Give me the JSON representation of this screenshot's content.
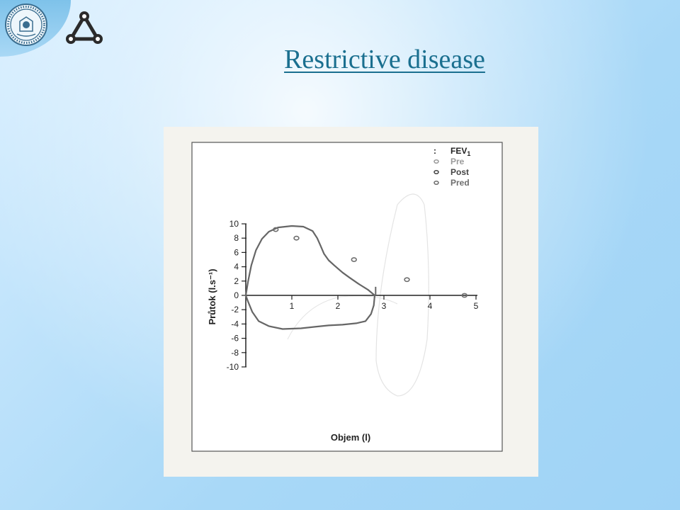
{
  "slide": {
    "title": "Restrictive disease",
    "colors": {
      "title": "#1a6f8f",
      "background": "#a8d8f7"
    }
  },
  "icons": {
    "seal": "university-seal-icon",
    "logo": "triangle-nodes-logo-icon"
  },
  "chart_data": {
    "type": "line",
    "title": "",
    "xlabel": "Objem (l)",
    "ylabel": "Průtok (l.s⁻¹)",
    "xlim": [
      0,
      5
    ],
    "ylim": [
      -10,
      10
    ],
    "x_ticks": [
      "1",
      "2",
      "3",
      "4",
      "5"
    ],
    "y_ticks": [
      "10",
      "8",
      "6",
      "4",
      "2",
      "0",
      "-2",
      "-4",
      "-6",
      "-8",
      "-10"
    ],
    "grid": false,
    "legend_position": "top-right",
    "legend": {
      "header_marker": ":",
      "header": "FEV",
      "header_sub": "1",
      "items": [
        {
          "label": "Pre",
          "color": "#9a9a9a"
        },
        {
          "label": "Post",
          "color": "#444444"
        },
        {
          "label": "Pred",
          "color": "#6e6e6e"
        }
      ]
    },
    "series": [
      {
        "kind": "curve",
        "color": "#666666",
        "points": [
          [
            0.0,
            0.0
          ],
          [
            0.05,
            2.0
          ],
          [
            0.12,
            4.2
          ],
          [
            0.22,
            6.3
          ],
          [
            0.35,
            7.9
          ],
          [
            0.5,
            8.9
          ],
          [
            0.7,
            9.5
          ],
          [
            1.0,
            9.7
          ],
          [
            1.25,
            9.6
          ],
          [
            1.45,
            9.0
          ],
          [
            1.55,
            8.0
          ],
          [
            1.62,
            7.0
          ],
          [
            1.7,
            5.8
          ],
          [
            1.8,
            4.9
          ],
          [
            1.92,
            4.2
          ],
          [
            2.1,
            3.2
          ],
          [
            2.25,
            2.5
          ],
          [
            2.45,
            1.6
          ],
          [
            2.65,
            0.8
          ],
          [
            2.8,
            0.0
          ],
          [
            2.78,
            -1.4
          ],
          [
            2.72,
            -2.6
          ],
          [
            2.6,
            -3.6
          ],
          [
            2.4,
            -3.9
          ],
          [
            2.1,
            -4.1
          ],
          [
            1.8,
            -4.2
          ],
          [
            1.5,
            -4.4
          ],
          [
            1.2,
            -4.6
          ],
          [
            0.8,
            -4.7
          ],
          [
            0.5,
            -4.3
          ],
          [
            0.28,
            -3.6
          ],
          [
            0.14,
            -2.3
          ],
          [
            0.05,
            -0.9
          ],
          [
            0.0,
            0.0
          ]
        ]
      },
      {
        "kind": "vertical-mark",
        "color": "#666666",
        "x": 2.82,
        "y_range": [
          0.0,
          1.2
        ]
      },
      {
        "kind": "points",
        "name": "Pred",
        "color": "#6e6e6e",
        "points": [
          [
            0.65,
            9.2
          ],
          [
            1.1,
            8.0
          ],
          [
            2.35,
            5.0
          ],
          [
            3.5,
            2.2
          ],
          [
            4.75,
            0.0
          ]
        ]
      }
    ]
  }
}
